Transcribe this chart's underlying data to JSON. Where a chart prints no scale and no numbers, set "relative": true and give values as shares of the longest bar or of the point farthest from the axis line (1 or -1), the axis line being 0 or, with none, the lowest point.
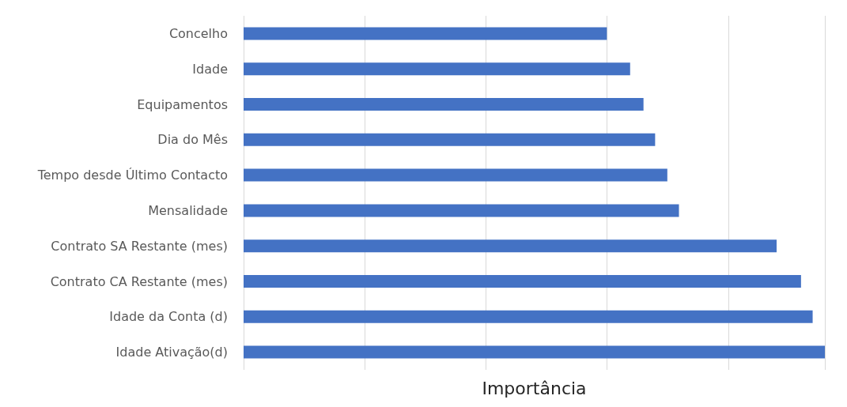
{
  "chart_data": {
    "type": "bar",
    "orientation": "horizontal",
    "relative": true,
    "xlabel": "Importância",
    "grid": "x",
    "categories": [
      "Concelho",
      "Idade",
      "Equipamentos",
      "Dia do Mês",
      "Tempo desde Último Contacto",
      "Mensalidade",
      "Contrato SA Restante (mes)",
      "Contrato CA Restante (mes)",
      "Idade da Conta (d)",
      "Idade Ativação(d)"
    ],
    "values": [
      0.625,
      0.665,
      0.688,
      0.708,
      0.729,
      0.749,
      0.917,
      0.959,
      0.979,
      1
    ],
    "color": "#4472c4"
  }
}
